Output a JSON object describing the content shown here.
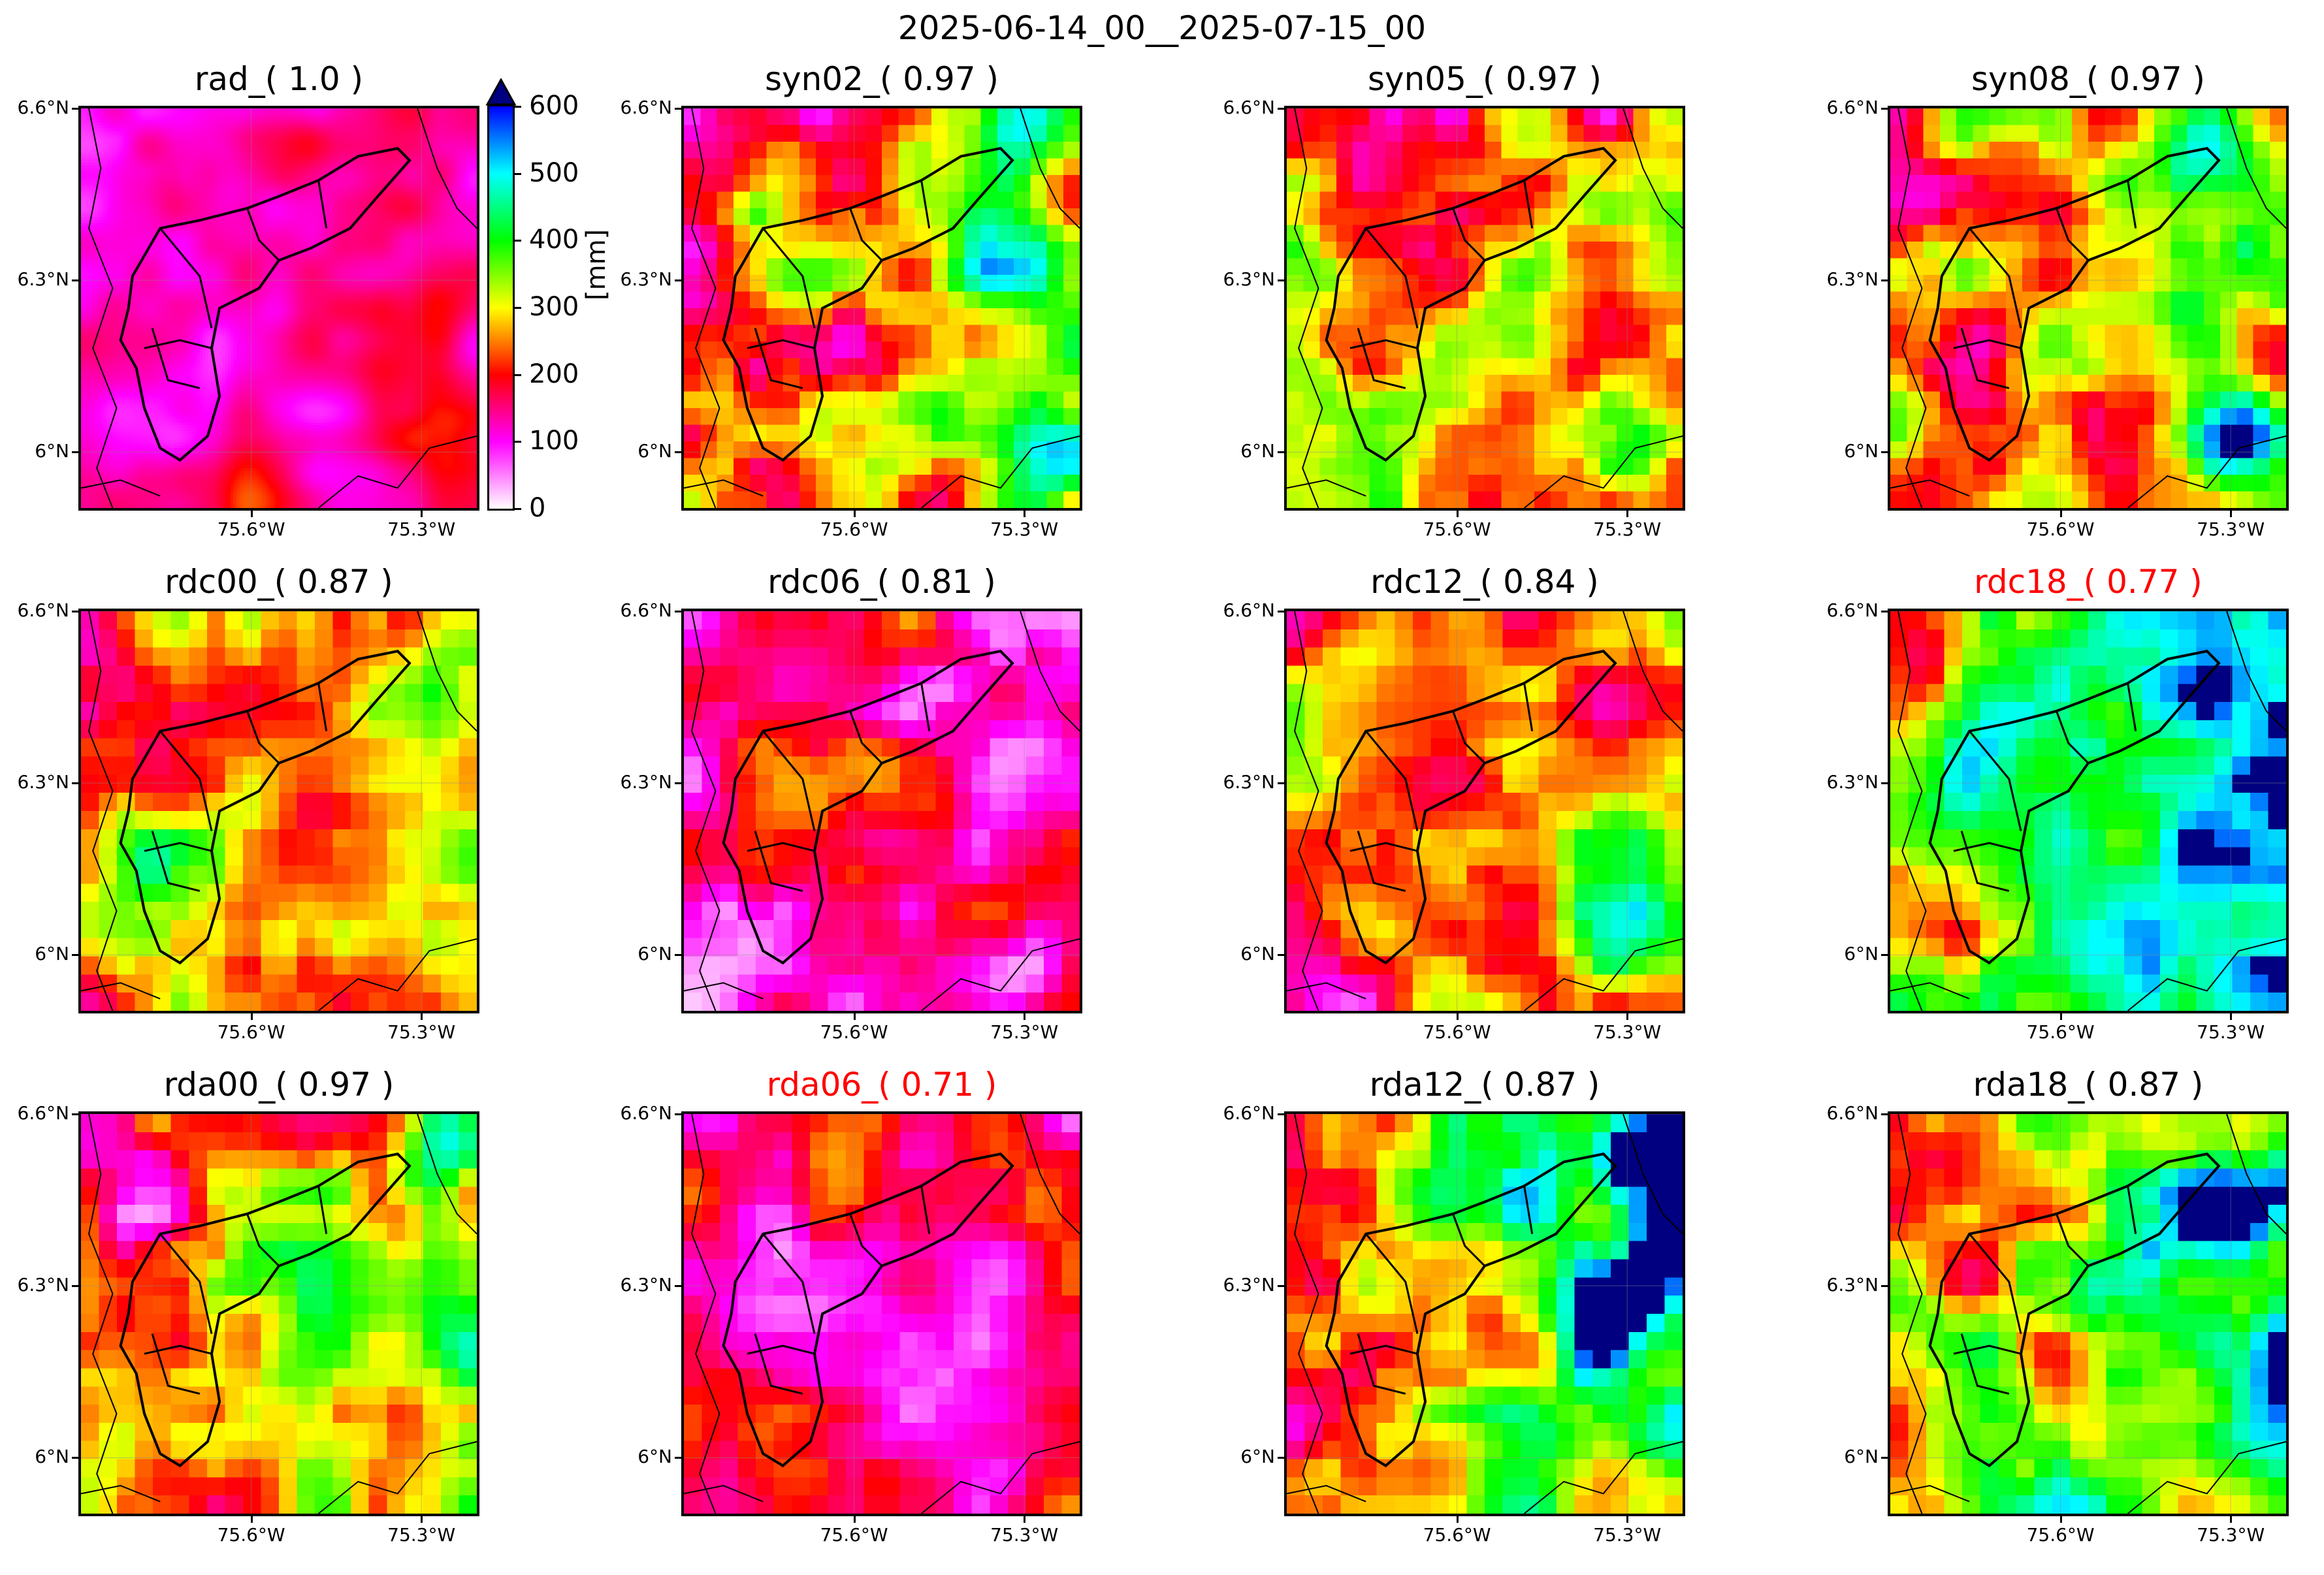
{
  "suptitle": "2025-06-14_00__2025-07-15_00",
  "panels": [
    {
      "title": "rad_( 1.0 )",
      "style": "rad",
      "highlight": false
    },
    {
      "title": "syn02_( 0.97 )",
      "style": "syn02",
      "highlight": false
    },
    {
      "title": "syn05_( 0.97 )",
      "style": "syn05",
      "highlight": false
    },
    {
      "title": "syn08_( 0.97 )",
      "style": "syn08",
      "highlight": false
    },
    {
      "title": "rdc00_( 0.87 )",
      "style": "rdc00",
      "highlight": false
    },
    {
      "title": "rdc06_( 0.81 )",
      "style": "rdc06",
      "highlight": false
    },
    {
      "title": "rdc12_( 0.84 )",
      "style": "rdc12",
      "highlight": false
    },
    {
      "title": "rdc18_( 0.77 )",
      "style": "rdc18",
      "highlight": true
    },
    {
      "title": "rda00_( 0.97 )",
      "style": "rda00",
      "highlight": false
    },
    {
      "title": "rda06_( 0.71 )",
      "style": "rda06",
      "highlight": true
    },
    {
      "title": "rda12_( 0.87 )",
      "style": "rda12",
      "highlight": false
    },
    {
      "title": "rda18_( 0.87 )",
      "style": "rda18",
      "highlight": false
    }
  ],
  "axes": {
    "yticks": [
      "6.6°N",
      "6.3°N",
      "6°N"
    ],
    "xticks": [
      "75.6°W",
      "75.3°W"
    ]
  },
  "colorbar": {
    "label": "[mm]",
    "ticks": [
      "0",
      "100",
      "200",
      "300",
      "400",
      "500",
      "600"
    ],
    "extend": "max",
    "colors": [
      "#ffffff",
      "#ff00ff",
      "#ff0000",
      "#ffff00",
      "#00ff00",
      "#00ffff",
      "#0000ff",
      "#000080"
    ]
  },
  "chart_data": {
    "type": "heatmap",
    "title": "2025-06-14_00__2025-07-15_00",
    "variable_label": "[mm]",
    "value_range": [
      0,
      600
    ],
    "lat_ticks": [
      "6.6°N",
      "6.3°N",
      "6°N"
    ],
    "lon_ticks": [
      "75.6°W",
      "75.3°W"
    ],
    "grid": true,
    "layout": "3x4",
    "panels": [
      {
        "name": "rad_",
        "score": 1.0
      },
      {
        "name": "syn02_",
        "score": 0.97
      },
      {
        "name": "syn05_",
        "score": 0.97
      },
      {
        "name": "syn08_",
        "score": 0.97
      },
      {
        "name": "rdc00_",
        "score": 0.87
      },
      {
        "name": "rdc06_",
        "score": 0.81
      },
      {
        "name": "rdc12_",
        "score": 0.84
      },
      {
        "name": "rdc18_",
        "score": 0.77
      },
      {
        "name": "rda00_",
        "score": 0.97
      },
      {
        "name": "rda06_",
        "score": 0.71
      },
      {
        "name": "rda12_",
        "score": 0.87
      },
      {
        "name": "rda18_",
        "score": 0.87
      }
    ]
  }
}
